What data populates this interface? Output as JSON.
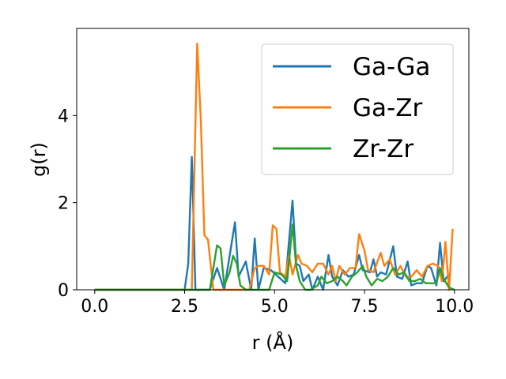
{
  "chart_data": {
    "type": "line",
    "title": "",
    "xlabel": "r (Å)",
    "ylabel": "g(r)",
    "xlim": [
      -0.5,
      10.4
    ],
    "ylim": [
      0,
      6.0
    ],
    "xticks": [
      0.0,
      2.5,
      5.0,
      7.5,
      10.0
    ],
    "xtick_labels": [
      "0.0",
      "2.5",
      "5.0",
      "7.5",
      "10.0"
    ],
    "yticks": [
      0,
      2,
      4
    ],
    "ytick_labels": [
      "0",
      "2",
      "4"
    ],
    "grid": false,
    "legend": "top-right",
    "series": [
      {
        "name": "Ga-Ga",
        "color": "#1f77b4",
        "points": [
          [
            0.0,
            0
          ],
          [
            2.5,
            0
          ],
          [
            2.6,
            0.6
          ],
          [
            2.7,
            3.05
          ],
          [
            2.8,
            0
          ],
          [
            3.2,
            0
          ],
          [
            3.4,
            0.5
          ],
          [
            3.6,
            0
          ],
          [
            3.9,
            1.55
          ],
          [
            4.0,
            0.3
          ],
          [
            4.2,
            0.65
          ],
          [
            4.35,
            0
          ],
          [
            4.45,
            1.18
          ],
          [
            4.55,
            0
          ],
          [
            4.7,
            0.5
          ],
          [
            4.9,
            0.45
          ],
          [
            5.1,
            0.3
          ],
          [
            5.3,
            0.15
          ],
          [
            5.5,
            2.05
          ],
          [
            5.6,
            0.6
          ],
          [
            5.7,
            0.55
          ],
          [
            5.8,
            0.2
          ],
          [
            5.95,
            0.35
          ],
          [
            6.05,
            0
          ],
          [
            6.2,
            0.3
          ],
          [
            6.35,
            0
          ],
          [
            6.5,
            0.8
          ],
          [
            6.6,
            0.3
          ],
          [
            6.75,
            0.1
          ],
          [
            6.9,
            0.45
          ],
          [
            7.05,
            0.3
          ],
          [
            7.2,
            0.35
          ],
          [
            7.35,
            0.8
          ],
          [
            7.45,
            0.45
          ],
          [
            7.65,
            0.4
          ],
          [
            7.75,
            0.7
          ],
          [
            7.85,
            0.3
          ],
          [
            7.95,
            0.4
          ],
          [
            8.1,
            0.35
          ],
          [
            8.3,
            1.0
          ],
          [
            8.4,
            0.3
          ],
          [
            8.55,
            0.25
          ],
          [
            8.7,
            0.65
          ],
          [
            8.8,
            0.1
          ],
          [
            8.95,
            0.15
          ],
          [
            9.1,
            0.15
          ],
          [
            9.25,
            0.55
          ],
          [
            9.35,
            0.5
          ],
          [
            9.5,
            0.1
          ],
          [
            9.6,
            1.08
          ],
          [
            9.7,
            0.2
          ],
          [
            9.85,
            0.35
          ],
          [
            9.9,
            0.35
          ]
        ]
      },
      {
        "name": "Ga-Zr",
        "color": "#ff7f0e",
        "points": [
          [
            0.0,
            0
          ],
          [
            2.7,
            0
          ],
          [
            2.85,
            5.65
          ],
          [
            2.95,
            3.9
          ],
          [
            3.05,
            1.25
          ],
          [
            3.15,
            1.15
          ],
          [
            3.3,
            0
          ],
          [
            4.3,
            0
          ],
          [
            4.45,
            0.5
          ],
          [
            4.55,
            0.55
          ],
          [
            4.7,
            0.55
          ],
          [
            4.85,
            0.35
          ],
          [
            4.95,
            1.48
          ],
          [
            5.05,
            1.4
          ],
          [
            5.15,
            0.4
          ],
          [
            5.3,
            0.3
          ],
          [
            5.4,
            0.8
          ],
          [
            5.5,
            0.35
          ],
          [
            5.65,
            0.8
          ],
          [
            5.75,
            0.6
          ],
          [
            5.9,
            0.55
          ],
          [
            6.05,
            0.4
          ],
          [
            6.2,
            0.6
          ],
          [
            6.35,
            0.6
          ],
          [
            6.5,
            0.35
          ],
          [
            6.6,
            0.55
          ],
          [
            6.7,
            0.2
          ],
          [
            6.8,
            0.55
          ],
          [
            6.95,
            0.35
          ],
          [
            7.1,
            0.5
          ],
          [
            7.25,
            0.5
          ],
          [
            7.35,
            1.28
          ],
          [
            7.5,
            0.9
          ],
          [
            7.6,
            0.45
          ],
          [
            7.75,
            0.4
          ],
          [
            7.95,
            0.85
          ],
          [
            8.05,
            0.55
          ],
          [
            8.2,
            0.7
          ],
          [
            8.35,
            0.35
          ],
          [
            8.5,
            0.55
          ],
          [
            8.65,
            0.3
          ],
          [
            8.8,
            0.3
          ],
          [
            8.95,
            0.45
          ],
          [
            9.1,
            0.3
          ],
          [
            9.25,
            0.55
          ],
          [
            9.4,
            0.6
          ],
          [
            9.55,
            0.55
          ],
          [
            9.65,
            0.2
          ],
          [
            9.75,
            1.1
          ],
          [
            9.85,
            0
          ],
          [
            9.95,
            1.4
          ]
        ]
      },
      {
        "name": "Zr-Zr",
        "color": "#2ca02c",
        "points": [
          [
            0.0,
            0
          ],
          [
            3.2,
            0
          ],
          [
            3.4,
            1.02
          ],
          [
            3.5,
            0.95
          ],
          [
            3.6,
            0.1
          ],
          [
            3.75,
            0.4
          ],
          [
            3.85,
            0.78
          ],
          [
            3.95,
            0.6
          ],
          [
            4.05,
            0.1
          ],
          [
            4.2,
            0
          ],
          [
            4.85,
            0
          ],
          [
            5.0,
            0.4
          ],
          [
            5.2,
            0.35
          ],
          [
            5.35,
            0.2
          ],
          [
            5.5,
            1.5
          ],
          [
            5.6,
            0.55
          ],
          [
            5.7,
            0.2
          ],
          [
            5.85,
            0
          ],
          [
            6.0,
            0
          ],
          [
            6.2,
            0.1
          ],
          [
            6.3,
            0.3
          ],
          [
            6.45,
            0.15
          ],
          [
            6.6,
            0.2
          ],
          [
            6.75,
            0.3
          ],
          [
            6.9,
            0.2
          ],
          [
            7.0,
            0.1
          ],
          [
            7.15,
            0.3
          ],
          [
            7.3,
            0.4
          ],
          [
            7.45,
            0.55
          ],
          [
            7.55,
            0.3
          ],
          [
            7.7,
            0.1
          ],
          [
            7.85,
            0.25
          ],
          [
            8.0,
            0.2
          ],
          [
            8.15,
            0.3
          ],
          [
            8.3,
            0.5
          ],
          [
            8.45,
            0.35
          ],
          [
            8.6,
            0.4
          ],
          [
            8.75,
            0.2
          ],
          [
            8.9,
            0.2
          ],
          [
            9.05,
            0.25
          ],
          [
            9.2,
            0.15
          ],
          [
            9.35,
            0.15
          ],
          [
            9.5,
            0.15
          ],
          [
            9.6,
            0.5
          ],
          [
            9.7,
            0.25
          ],
          [
            9.85,
            0.05
          ],
          [
            10.0,
            0
          ]
        ]
      }
    ]
  }
}
